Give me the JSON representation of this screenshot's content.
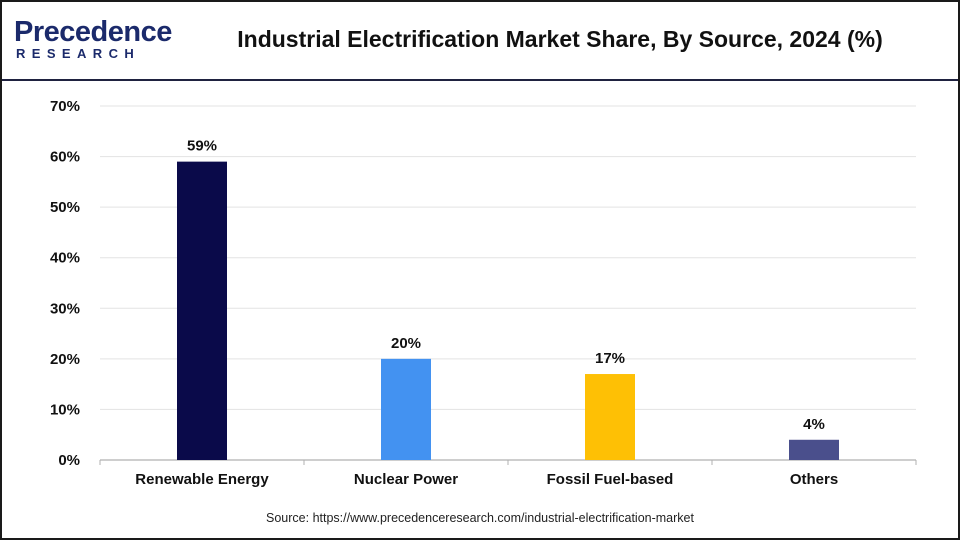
{
  "header": {
    "logo_primary": "Precedence",
    "logo_secondary": "RESEARCH",
    "title": "Industrial Electrification Market Share, By Source, 2024 (%)"
  },
  "footer": {
    "source": "Source: https://www.precedenceresearch.com/industrial-electrification-market"
  },
  "chart_data": {
    "type": "bar",
    "title": "Industrial Electrification Market Share, By Source, 2024 (%)",
    "xlabel": "",
    "ylabel": "",
    "categories": [
      "Renewable Energy",
      "Nuclear Power",
      "Fossil Fuel-based",
      "Others"
    ],
    "values": [
      59,
      20,
      17,
      4
    ],
    "value_labels": [
      "59%",
      "20%",
      "17%",
      "4%"
    ],
    "bar_colors": [
      "#0a0a4a",
      "#4392f1",
      "#fec005",
      "#4a4f8c"
    ],
    "ylim": [
      0,
      70
    ],
    "yticks": [
      0,
      10,
      20,
      30,
      40,
      50,
      60,
      70
    ],
    "ytick_labels": [
      "0%",
      "10%",
      "20%",
      "30%",
      "40%",
      "50%",
      "60%",
      "70%"
    ],
    "grid": true,
    "legend": "none"
  }
}
